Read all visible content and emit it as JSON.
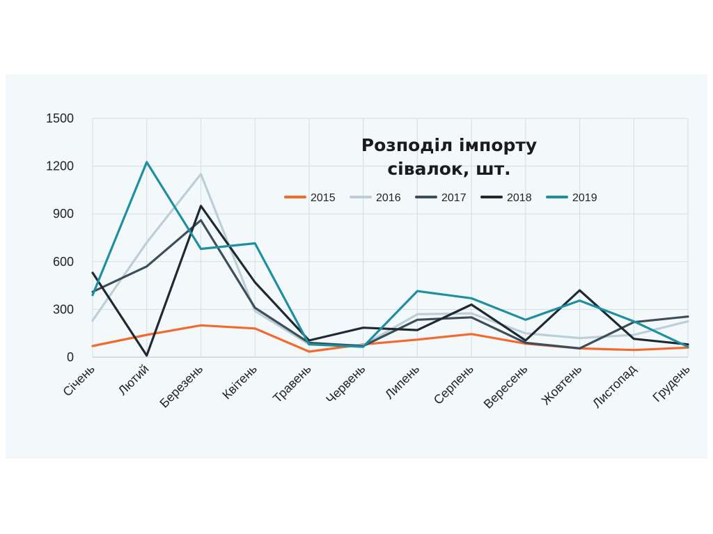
{
  "chart_data": {
    "type": "line",
    "title_lines": [
      "Розподіл імпорту",
      "сівалок, шт."
    ],
    "xlabel": "",
    "ylabel": "",
    "categories": [
      "Січень",
      "Лютий",
      "Березень",
      "Квітень",
      "Травень",
      "Червень",
      "Липень",
      "Серпень",
      "Вересень",
      "Жовтень",
      "Листопад",
      "Грудень"
    ],
    "ylim": [
      0,
      1500
    ],
    "yticks": [
      "0",
      "300",
      "600",
      "900",
      "1200",
      "1500"
    ],
    "ytick_values": [
      0,
      300,
      600,
      900,
      1200,
      1500
    ],
    "grid": "vertical and horizontal",
    "legend": "top-right",
    "series": [
      {
        "name": "2015",
        "color": "#f26a2e",
        "values": [
          70,
          140,
          200,
          180,
          35,
          80,
          110,
          145,
          85,
          55,
          45,
          60
        ]
      },
      {
        "name": "2016",
        "color": "#bcced6",
        "values": [
          230,
          720,
          1150,
          290,
          80,
          75,
          270,
          275,
          150,
          120,
          140,
          225
        ]
      },
      {
        "name": "2017",
        "color": "#3c4e5a",
        "values": [
          410,
          570,
          860,
          310,
          90,
          70,
          235,
          250,
          90,
          55,
          220,
          255
        ]
      },
      {
        "name": "2018",
        "color": "#1e2a32",
        "values": [
          530,
          10,
          950,
          470,
          105,
          185,
          170,
          330,
          105,
          420,
          115,
          80
        ]
      },
      {
        "name": "2019",
        "color": "#1d8fa0",
        "values": [
          390,
          1225,
          680,
          715,
          80,
          65,
          415,
          370,
          235,
          355,
          225,
          65
        ]
      }
    ]
  }
}
